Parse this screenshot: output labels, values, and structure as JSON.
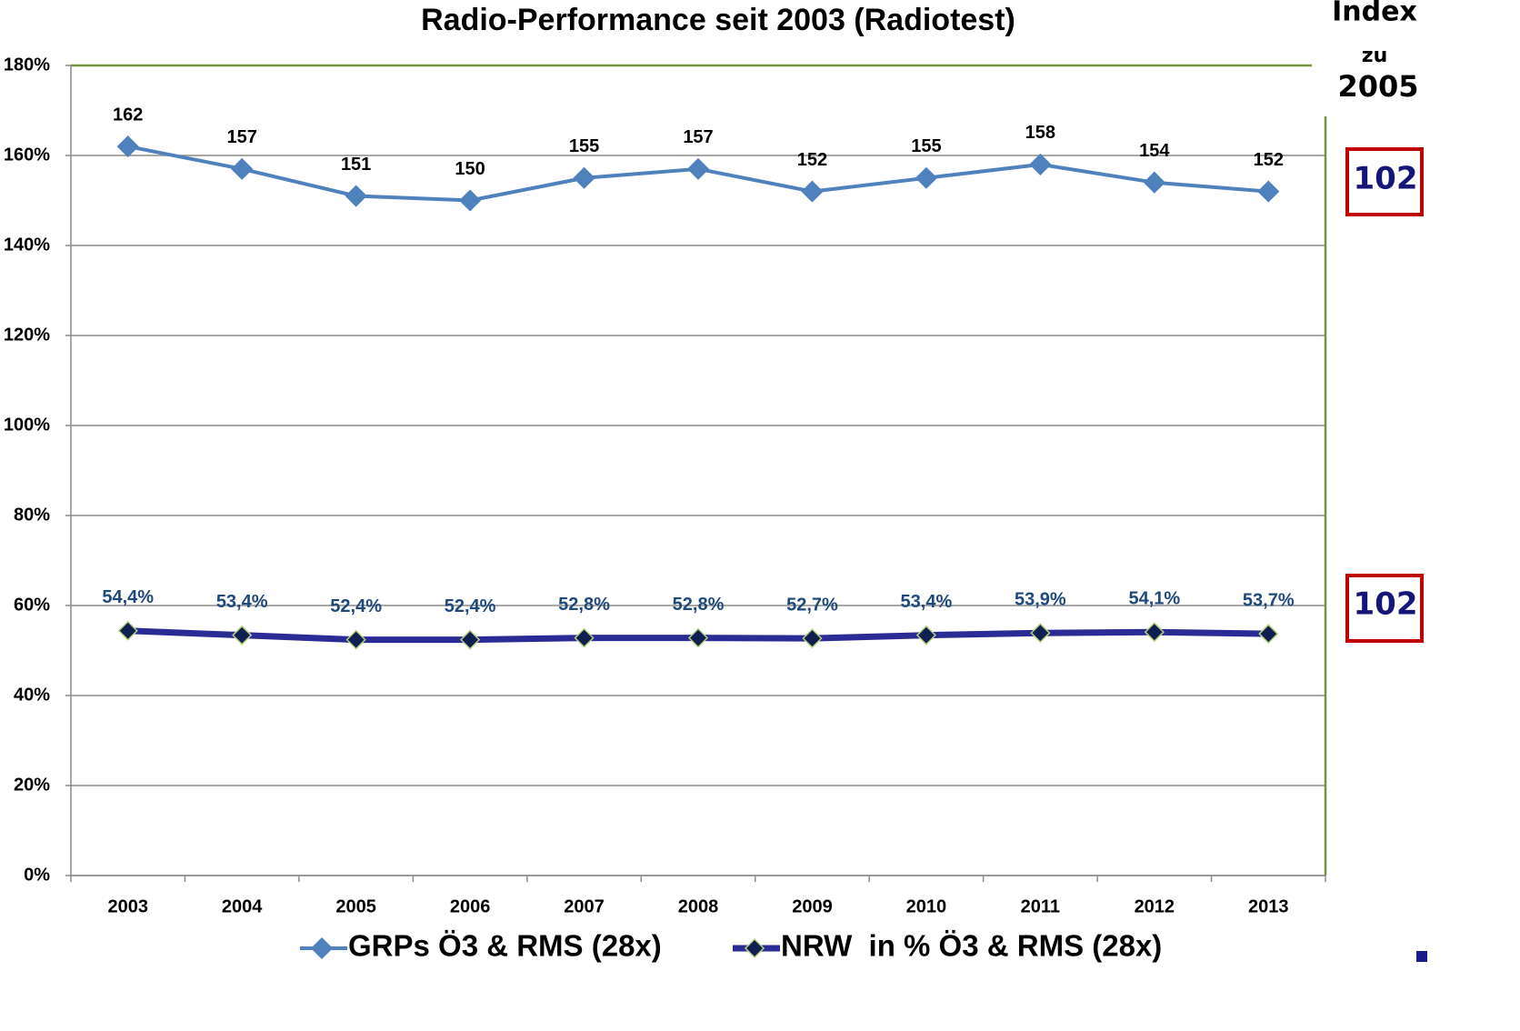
{
  "chart_data": {
    "type": "line",
    "title": "Radio-Performance seit 2003 (Radiotest)",
    "categories": [
      "2003",
      "2004",
      "2005",
      "2006",
      "2007",
      "2008",
      "2009",
      "2010",
      "2011",
      "2012",
      "2013"
    ],
    "series": [
      {
        "name": "GRPs Ö3 & RMS (28x)",
        "color": "#4f81bd",
        "values": [
          162,
          157,
          151,
          150,
          155,
          157,
          152,
          155,
          158,
          154,
          152
        ]
      },
      {
        "name": "NRW  in % Ö3 & RMS (28x)",
        "color": "#2b2b96",
        "values": [
          54.4,
          53.4,
          52.4,
          52.4,
          52.8,
          52.8,
          52.7,
          53.4,
          53.9,
          54.1,
          53.7
        ],
        "value_labels": [
          "54,4%",
          "53,4%",
          "52,4%",
          "52,4%",
          "52,8%",
          "52,8%",
          "52,7%",
          "53,4%",
          "53,9%",
          "54,1%",
          "53,7%"
        ]
      }
    ],
    "ylim": [
      0,
      180
    ],
    "yticks": [
      {
        "value": 0,
        "label": "0%"
      },
      {
        "value": 20,
        "label": "20%"
      },
      {
        "value": 40,
        "label": "40%"
      },
      {
        "value": 60,
        "label": "60%"
      },
      {
        "value": 80,
        "label": "80%"
      },
      {
        "value": 100,
        "label": "100%"
      },
      {
        "value": 120,
        "label": "120%"
      },
      {
        "value": 140,
        "label": "140%"
      },
      {
        "value": 160,
        "label": "160%"
      },
      {
        "value": 180,
        "label": "180%"
      }
    ],
    "grid": true,
    "legend": "bottom",
    "annotations": {
      "index_title": [
        "Index",
        "zu",
        "2005"
      ],
      "index_values": [
        "102",
        "102"
      ]
    }
  }
}
